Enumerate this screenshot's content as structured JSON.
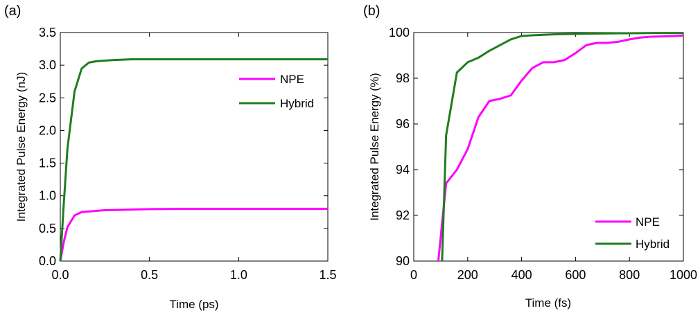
{
  "chart_data": [
    {
      "panel_label": "(a)",
      "type": "line",
      "xlabel": "Time (ps)",
      "ylabel": "Integrated Pulse Energy (nJ)",
      "xlim": [
        0,
        1.5
      ],
      "ylim": [
        0,
        3.5
      ],
      "xticks": [
        0,
        0.5,
        1.0,
        1.5
      ],
      "xtick_labels": [
        "0.0",
        "0.5",
        "1.0",
        "1.5"
      ],
      "yticks": [
        0,
        0.5,
        1.0,
        1.5,
        2.0,
        2.5,
        3.0,
        3.5
      ],
      "ytick_labels": [
        "0.0",
        "0.5",
        "1.0",
        "1.5",
        "2.0",
        "2.5",
        "3.0",
        "3.5"
      ],
      "grid": false,
      "legend_position": "top-right",
      "series": [
        {
          "name": "NPE",
          "color": "#ff00ff",
          "x": [
            0.0,
            0.02,
            0.04,
            0.08,
            0.12,
            0.16,
            0.25,
            0.35,
            0.5,
            0.65,
            0.8,
            1.0,
            1.2,
            1.5
          ],
          "y": [
            0.0,
            0.3,
            0.52,
            0.7,
            0.75,
            0.76,
            0.78,
            0.785,
            0.795,
            0.8,
            0.8,
            0.8,
            0.8,
            0.8
          ]
        },
        {
          "name": "Hybrid",
          "color": "#1e7d1e",
          "x": [
            0.0,
            0.02,
            0.04,
            0.08,
            0.12,
            0.16,
            0.2,
            0.3,
            0.4,
            0.5,
            0.7,
            1.0,
            1.5
          ],
          "y": [
            0.0,
            0.9,
            1.72,
            2.6,
            2.95,
            3.04,
            3.06,
            3.08,
            3.09,
            3.09,
            3.09,
            3.09,
            3.09
          ]
        }
      ]
    },
    {
      "panel_label": "(b)",
      "type": "line",
      "xlabel": "Time (fs)",
      "ylabel": "Integrated Pulse Energy (%)",
      "xlim": [
        0,
        1000
      ],
      "ylim": [
        90,
        100
      ],
      "xticks": [
        0,
        200,
        400,
        600,
        800,
        1000
      ],
      "xtick_labels": [
        "0",
        "200",
        "400",
        "600",
        "800",
        "1000"
      ],
      "yticks": [
        90,
        92,
        94,
        96,
        98,
        100
      ],
      "ytick_labels": [
        "90",
        "92",
        "94",
        "96",
        "98",
        "100"
      ],
      "grid": false,
      "legend_position": "bottom-right",
      "series": [
        {
          "name": "NPE",
          "color": "#ff00ff",
          "x": [
            91,
            120,
            160,
            200,
            240,
            280,
            320,
            360,
            400,
            440,
            480,
            520,
            560,
            600,
            640,
            680,
            720,
            760,
            800,
            840,
            880,
            920,
            960,
            1000
          ],
          "y": [
            90.0,
            93.4,
            94.0,
            94.9,
            96.3,
            97.0,
            97.1,
            97.25,
            97.9,
            98.45,
            98.7,
            98.7,
            98.8,
            99.1,
            99.45,
            99.55,
            99.55,
            99.6,
            99.7,
            99.78,
            99.82,
            99.83,
            99.85,
            99.87
          ]
        },
        {
          "name": "Hybrid",
          "color": "#1e7d1e",
          "x": [
            105,
            120,
            160,
            200,
            240,
            280,
            320,
            360,
            400,
            440,
            480,
            520,
            560,
            600,
            640,
            700,
            800,
            900,
            1000
          ],
          "y": [
            90.0,
            95.5,
            98.25,
            98.7,
            98.9,
            99.2,
            99.45,
            99.7,
            99.85,
            99.88,
            99.9,
            99.92,
            99.93,
            99.94,
            99.95,
            99.96,
            99.97,
            99.98,
            99.98
          ]
        }
      ]
    }
  ]
}
